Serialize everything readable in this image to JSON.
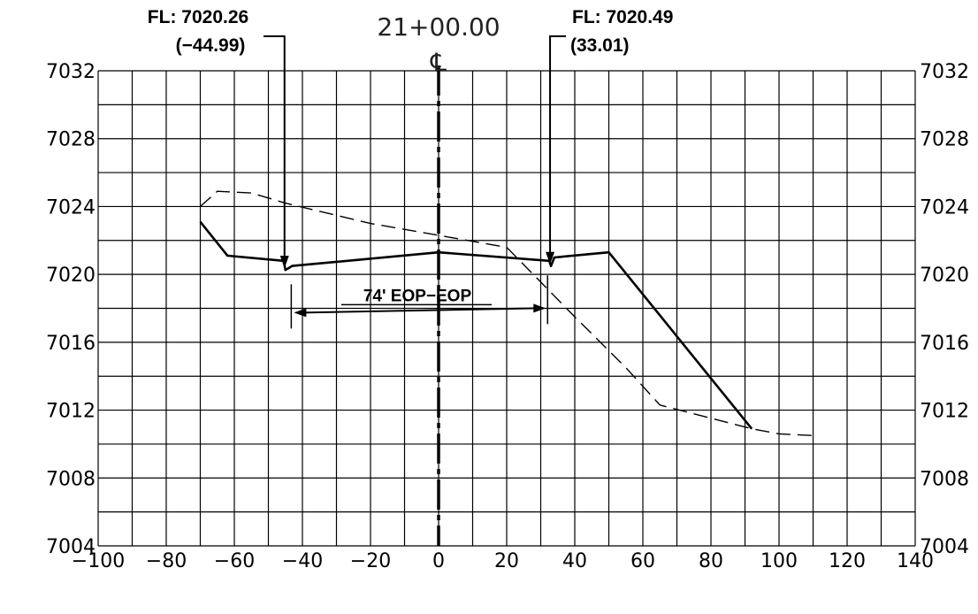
{
  "chart_data": {
    "type": "line",
    "station": "21+00.00",
    "centerline_symbol": "℄",
    "x": {
      "min": -100,
      "max": 140,
      "step": 10,
      "tick_labels": [
        "−100",
        "−80",
        "−60",
        "−40",
        "−20",
        "0",
        "20",
        "40",
        "60",
        "80",
        "100",
        "120",
        "140"
      ]
    },
    "y": {
      "min": 7004,
      "max": 7032,
      "step": 2,
      "tick_labels": [
        "7032",
        "7028",
        "7024",
        "7020",
        "7016",
        "7012",
        "7008",
        "7004"
      ]
    },
    "grid": true,
    "series": [
      {
        "style": "solid",
        "points": [
          [
            -70,
            7023.1
          ],
          [
            -62,
            7021.1
          ],
          [
            -45.5,
            7020.8
          ],
          [
            -45,
            7020.26
          ],
          [
            -43,
            7020.5
          ],
          [
            0,
            7021.3
          ],
          [
            32.5,
            7020.8
          ],
          [
            33,
            7020.49
          ],
          [
            34,
            7021.0
          ],
          [
            50,
            7021.3
          ],
          [
            92,
            7010.9
          ]
        ]
      },
      {
        "style": "dashed",
        "points": [
          [
            -70,
            7024
          ],
          [
            -65,
            7024.9
          ],
          [
            -55,
            7024.8
          ],
          [
            -45,
            7024.2
          ],
          [
            -20,
            7023.0
          ],
          [
            0,
            7022.3
          ],
          [
            20,
            7021.6
          ],
          [
            40,
            7017.5
          ],
          [
            55,
            7014.5
          ],
          [
            65,
            7012.3
          ],
          [
            92,
            7010.9
          ],
          [
            100,
            7010.6
          ],
          [
            110,
            7010.5
          ]
        ]
      }
    ],
    "annotations": {
      "left": {
        "line1": "FL: 7020.26",
        "line2": "(−44.99)",
        "target": [
          -45,
          7020.26
        ]
      },
      "right": {
        "line1": "FL: 7020.49",
        "line2": "(33.01)",
        "target": [
          33,
          7020.49
        ]
      },
      "dimension": {
        "label": "74' EOP−EOP",
        "x1": -42.5,
        "x2": 31.5,
        "y": 7017.8
      }
    }
  }
}
